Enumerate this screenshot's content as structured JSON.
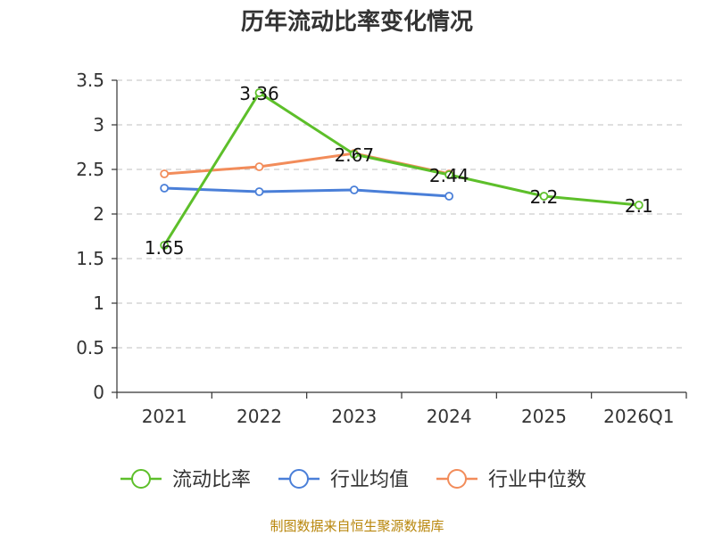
{
  "chart_data": {
    "type": "line",
    "title": "历年流动比率变化情况",
    "categories": [
      "2021",
      "2022",
      "2023",
      "2024",
      "2025",
      "2026Q1"
    ],
    "ylim": [
      0,
      3.5
    ],
    "yticks": [
      "0",
      "0.5",
      "1",
      "1.5",
      "2",
      "2.5",
      "3",
      "3.5"
    ],
    "ytick_values": [
      0,
      0.5,
      1,
      1.5,
      2,
      2.5,
      3,
      3.5
    ],
    "grid": true,
    "legend_position": "bottom",
    "series": [
      {
        "name": "流动比率",
        "color": "#5dbf2a",
        "values": [
          1.65,
          3.36,
          2.67,
          2.44,
          2.2,
          2.1
        ],
        "labels": [
          "1.65",
          "3.36",
          "2.67",
          "2.44",
          "2.2",
          "2.1"
        ]
      },
      {
        "name": "行业均值",
        "color": "#4a7fd8",
        "values": [
          2.29,
          2.25,
          2.27,
          2.2,
          null,
          null
        ]
      },
      {
        "name": "行业中位数",
        "color": "#f28c5a",
        "values": [
          2.45,
          2.53,
          2.68,
          2.45,
          null,
          null
        ]
      }
    ],
    "source": "制图数据来自恒生聚源数据库"
  }
}
